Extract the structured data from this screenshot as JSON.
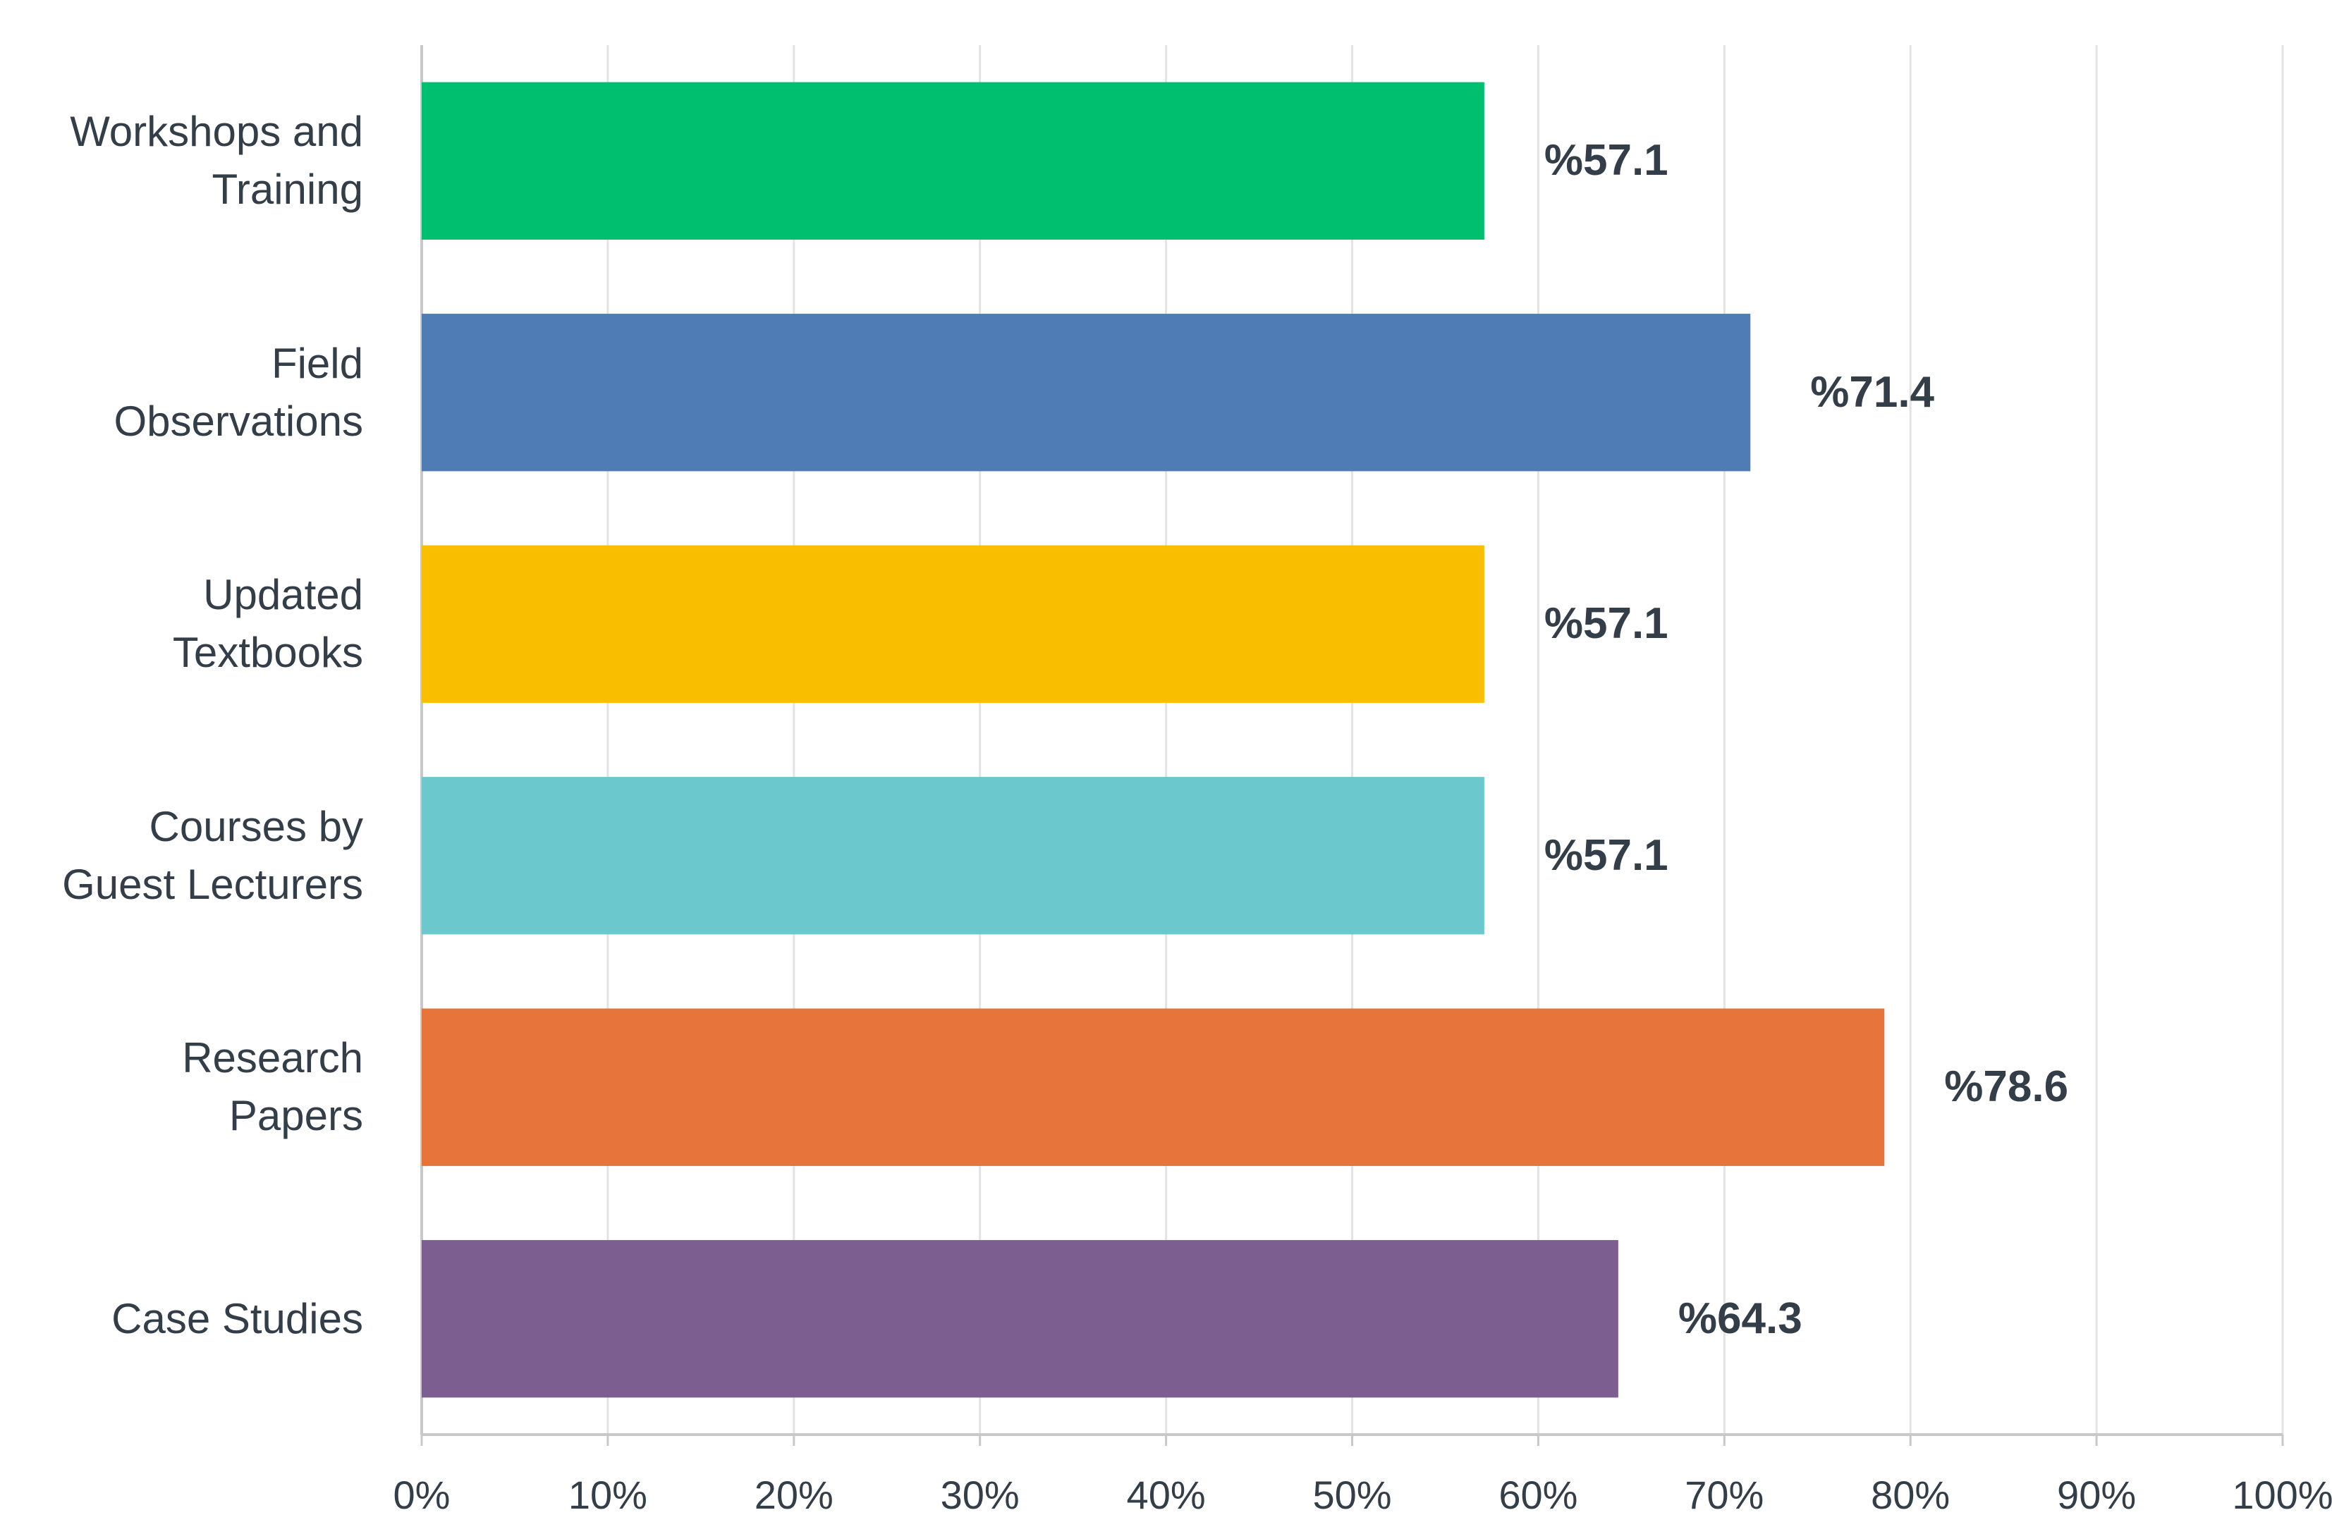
{
  "chart_data": {
    "type": "bar",
    "orientation": "horizontal",
    "categories": [
      "Workshops and\nTraining",
      "Field\nObservations",
      "Updated\nTextbooks",
      "Courses by\nGuest Lecturers",
      "Research\nPapers",
      "Case Studies"
    ],
    "values": [
      57.1,
      71.4,
      57.1,
      57.1,
      78.6,
      64.3
    ],
    "value_labels": [
      "%57.1",
      "%71.4",
      "%57.1",
      "%57.1",
      "%78.6",
      "%64.3"
    ],
    "colors": [
      "#00bf6f",
      "#507cb6",
      "#f9be00",
      "#6bc8cd",
      "#e7743a",
      "#7d5e90"
    ],
    "xlim": [
      0,
      100
    ],
    "xticks": [
      {
        "value": 0,
        "label": "0%"
      },
      {
        "value": 10,
        "label": "10%"
      },
      {
        "value": 20,
        "label": "20%"
      },
      {
        "value": 30,
        "label": "30%"
      },
      {
        "value": 40,
        "label": "40%"
      },
      {
        "value": 50,
        "label": "50%"
      },
      {
        "value": 60,
        "label": "60%"
      },
      {
        "value": 70,
        "label": "70%"
      },
      {
        "value": 80,
        "label": "80%"
      },
      {
        "value": 90,
        "label": "90%"
      },
      {
        "value": 100,
        "label": "100%"
      }
    ],
    "grid": true
  }
}
